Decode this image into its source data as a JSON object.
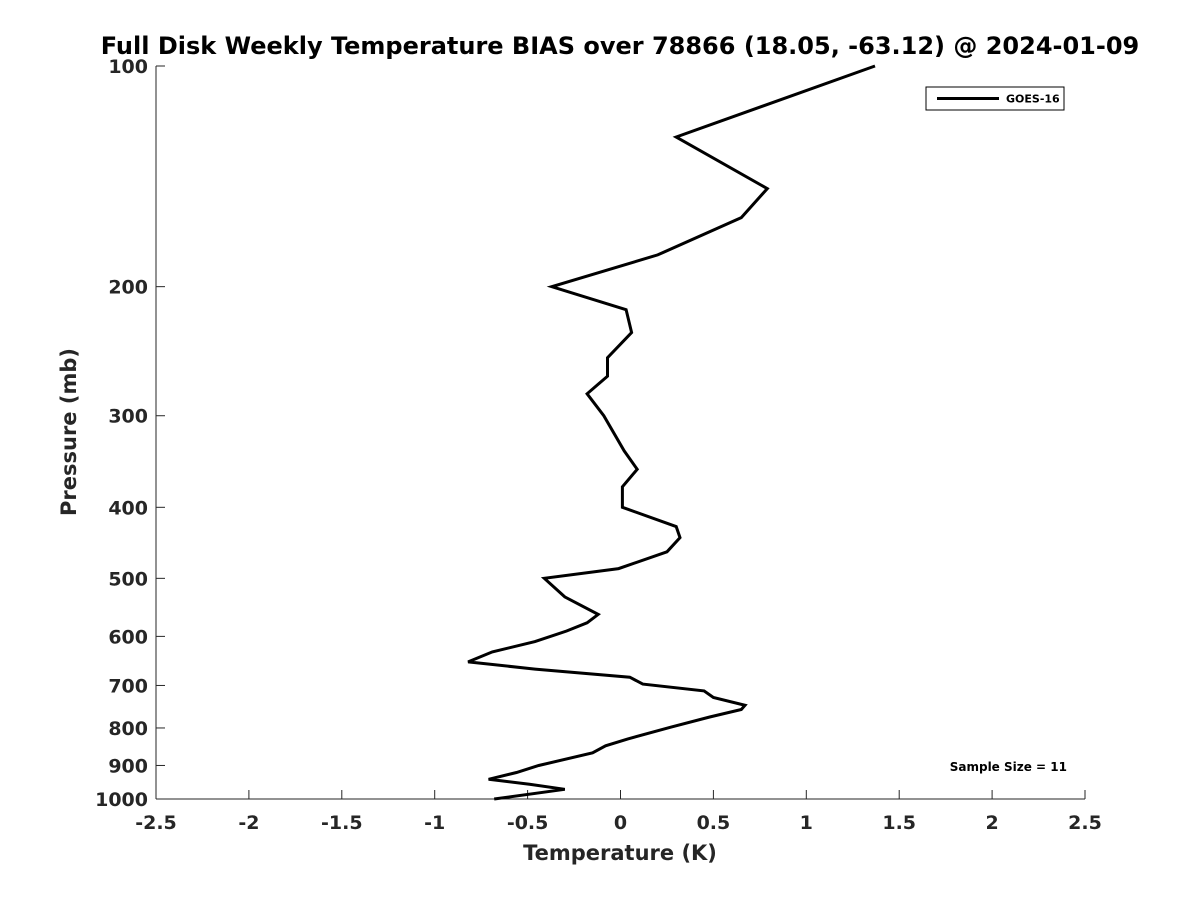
{
  "chart_data": {
    "type": "line",
    "title": "Full Disk Weekly Temperature BIAS over 78866 (18.05, -63.12) @ 2024-01-09",
    "xlabel": "Temperature (K)",
    "ylabel": "Pressure (mb)",
    "xlim": [
      -2.5,
      2.5
    ],
    "ylim": [
      100,
      1000
    ],
    "y_scale": "log",
    "y_reversed": true,
    "x_ticks": [
      "-2.5",
      "-2",
      "-1.5",
      "-1",
      "-0.5",
      "0",
      "0.5",
      "1",
      "1.5",
      "2",
      "2.5"
    ],
    "y_ticks": [
      "100",
      "200",
      "300",
      "400",
      "500",
      "600",
      "700",
      "800",
      "900",
      "1000"
    ],
    "grid": false,
    "legend_position": "top-right",
    "series": [
      {
        "name": "GOES-16",
        "color": "#000000",
        "points": [
          {
            "x": 1.37,
            "p": 100
          },
          {
            "x": 0.3,
            "p": 125
          },
          {
            "x": 0.79,
            "p": 147
          },
          {
            "x": 0.65,
            "p": 161
          },
          {
            "x": 0.2,
            "p": 181
          },
          {
            "x": -0.37,
            "p": 200
          },
          {
            "x": 0.03,
            "p": 215
          },
          {
            "x": 0.06,
            "p": 231
          },
          {
            "x": -0.07,
            "p": 250
          },
          {
            "x": -0.07,
            "p": 265
          },
          {
            "x": -0.18,
            "p": 280
          },
          {
            "x": -0.09,
            "p": 300
          },
          {
            "x": 0.02,
            "p": 335
          },
          {
            "x": 0.09,
            "p": 355
          },
          {
            "x": 0.01,
            "p": 375
          },
          {
            "x": 0.01,
            "p": 400
          },
          {
            "x": 0.3,
            "p": 425
          },
          {
            "x": 0.32,
            "p": 440
          },
          {
            "x": 0.25,
            "p": 460
          },
          {
            "x": -0.01,
            "p": 485
          },
          {
            "x": -0.41,
            "p": 500
          },
          {
            "x": -0.3,
            "p": 530
          },
          {
            "x": -0.12,
            "p": 560
          },
          {
            "x": -0.18,
            "p": 575
          },
          {
            "x": -0.29,
            "p": 590
          },
          {
            "x": -0.46,
            "p": 610
          },
          {
            "x": -0.69,
            "p": 630
          },
          {
            "x": -0.82,
            "p": 650
          },
          {
            "x": -0.46,
            "p": 665
          },
          {
            "x": 0.05,
            "p": 682
          },
          {
            "x": 0.12,
            "p": 697
          },
          {
            "x": 0.45,
            "p": 712
          },
          {
            "x": 0.5,
            "p": 727
          },
          {
            "x": 0.67,
            "p": 745
          },
          {
            "x": 0.65,
            "p": 755
          },
          {
            "x": 0.48,
            "p": 773
          },
          {
            "x": 0.27,
            "p": 798
          },
          {
            "x": 0.04,
            "p": 828
          },
          {
            "x": -0.08,
            "p": 846
          },
          {
            "x": -0.15,
            "p": 865
          },
          {
            "x": -0.44,
            "p": 900
          },
          {
            "x": -0.56,
            "p": 920
          },
          {
            "x": -0.71,
            "p": 940
          },
          {
            "x": -0.49,
            "p": 955
          },
          {
            "x": -0.3,
            "p": 970
          },
          {
            "x": -0.68,
            "p": 1000
          }
        ]
      }
    ],
    "annotation": "Sample Size = 11"
  }
}
